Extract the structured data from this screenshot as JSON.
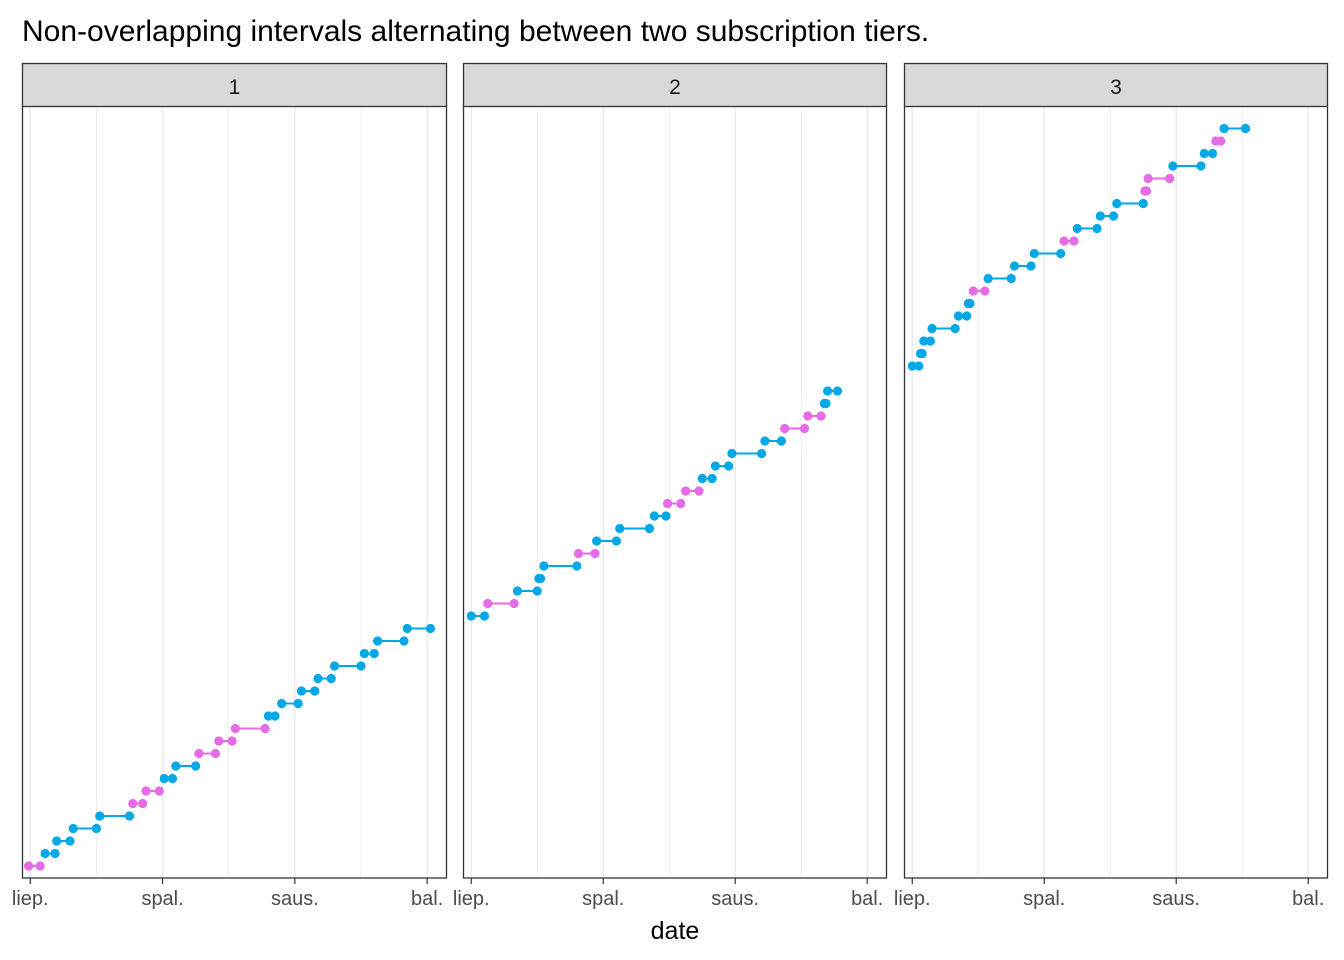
{
  "chart_data": {
    "type": "line",
    "title": "Non-overlapping intervals alternating between two subscription tiers.",
    "xlabel": "date",
    "ylabel": "",
    "x_unit": "months since liep.",
    "xlim": [
      -0.25,
      12.6
    ],
    "ylim": [
      0,
      60
    ],
    "x_ticks": [
      {
        "value": 0,
        "label": "liep."
      },
      {
        "value": 4,
        "label": "spal."
      },
      {
        "value": 8,
        "label": "saus."
      },
      {
        "value": 12,
        "label": "bal."
      }
    ],
    "x_minor_ticks": [
      2,
      6,
      10
    ],
    "grid": true,
    "tier_colors": {
      "A": "#00A9E6",
      "B": "#E66BE6"
    },
    "panels": [
      {
        "label": "1",
        "segments": [
          {
            "y": 0,
            "x0": -0.05,
            "x1": 0.3,
            "tier": "B"
          },
          {
            "y": 1,
            "x0": 0.45,
            "x1": 0.75,
            "tier": "A"
          },
          {
            "y": 2,
            "x0": 0.8,
            "x1": 1.2,
            "tier": "A"
          },
          {
            "y": 3,
            "x0": 1.3,
            "x1": 2.0,
            "tier": "A"
          },
          {
            "y": 4,
            "x0": 2.1,
            "x1": 3.0,
            "tier": "A"
          },
          {
            "y": 5,
            "x0": 3.1,
            "x1": 3.4,
            "tier": "B"
          },
          {
            "y": 6,
            "x0": 3.5,
            "x1": 3.9,
            "tier": "B"
          },
          {
            "y": 7,
            "x0": 4.05,
            "x1": 4.3,
            "tier": "A"
          },
          {
            "y": 8,
            "x0": 4.4,
            "x1": 5.0,
            "tier": "A"
          },
          {
            "y": 9,
            "x0": 5.1,
            "x1": 5.6,
            "tier": "B"
          },
          {
            "y": 10,
            "x0": 5.7,
            "x1": 6.1,
            "tier": "B"
          },
          {
            "y": 11,
            "x0": 6.2,
            "x1": 7.1,
            "tier": "B"
          },
          {
            "y": 12,
            "x0": 7.2,
            "x1": 7.4,
            "tier": "A"
          },
          {
            "y": 13,
            "x0": 7.6,
            "x1": 8.1,
            "tier": "A"
          },
          {
            "y": 14,
            "x0": 8.2,
            "x1": 8.6,
            "tier": "A"
          },
          {
            "y": 15,
            "x0": 8.7,
            "x1": 9.1,
            "tier": "A"
          },
          {
            "y": 16,
            "x0": 9.2,
            "x1": 10.0,
            "tier": "A"
          },
          {
            "y": 17,
            "x0": 10.1,
            "x1": 10.4,
            "tier": "A"
          },
          {
            "y": 18,
            "x0": 10.5,
            "x1": 11.3,
            "tier": "A"
          },
          {
            "y": 19,
            "x0": 11.4,
            "x1": 12.1,
            "tier": "A"
          }
        ]
      },
      {
        "label": "2",
        "segments": [
          {
            "y": 20,
            "x0": 0.0,
            "x1": 0.4,
            "tier": "A"
          },
          {
            "y": 21,
            "x0": 0.5,
            "x1": 1.3,
            "tier": "B"
          },
          {
            "y": 22,
            "x0": 1.4,
            "x1": 2.0,
            "tier": "A"
          },
          {
            "y": 23,
            "x0": 2.05,
            "x1": 2.1,
            "tier": "A"
          },
          {
            "y": 24,
            "x0": 2.2,
            "x1": 3.2,
            "tier": "A"
          },
          {
            "y": 25,
            "x0": 3.25,
            "x1": 3.75,
            "tier": "B"
          },
          {
            "y": 26,
            "x0": 3.8,
            "x1": 4.4,
            "tier": "A"
          },
          {
            "y": 27,
            "x0": 4.5,
            "x1": 5.4,
            "tier": "A"
          },
          {
            "y": 28,
            "x0": 5.55,
            "x1": 5.9,
            "tier": "A"
          },
          {
            "y": 29,
            "x0": 5.95,
            "x1": 6.35,
            "tier": "B"
          },
          {
            "y": 30,
            "x0": 6.5,
            "x1": 6.9,
            "tier": "B"
          },
          {
            "y": 31,
            "x0": 7.0,
            "x1": 7.3,
            "tier": "A"
          },
          {
            "y": 32,
            "x0": 7.4,
            "x1": 7.8,
            "tier": "A"
          },
          {
            "y": 33,
            "x0": 7.9,
            "x1": 8.8,
            "tier": "A"
          },
          {
            "y": 34,
            "x0": 8.9,
            "x1": 9.4,
            "tier": "A"
          },
          {
            "y": 35,
            "x0": 9.5,
            "x1": 10.1,
            "tier": "B"
          },
          {
            "y": 36,
            "x0": 10.2,
            "x1": 10.6,
            "tier": "B"
          },
          {
            "y": 37,
            "x0": 10.7,
            "x1": 10.75,
            "tier": "A"
          },
          {
            "y": 38,
            "x0": 10.8,
            "x1": 11.1,
            "tier": "A"
          }
        ]
      },
      {
        "label": "3",
        "segments": [
          {
            "y": 40,
            "x0": 0.0,
            "x1": 0.2,
            "tier": "A"
          },
          {
            "y": 41,
            "x0": 0.25,
            "x1": 0.3,
            "tier": "A"
          },
          {
            "y": 42,
            "x0": 0.35,
            "x1": 0.55,
            "tier": "A"
          },
          {
            "y": 43,
            "x0": 0.6,
            "x1": 1.3,
            "tier": "A"
          },
          {
            "y": 44,
            "x0": 1.4,
            "x1": 1.65,
            "tier": "A"
          },
          {
            "y": 45,
            "x0": 1.7,
            "x1": 1.75,
            "tier": "A"
          },
          {
            "y": 46,
            "x0": 1.85,
            "x1": 2.2,
            "tier": "B"
          },
          {
            "y": 47,
            "x0": 2.3,
            "x1": 3.0,
            "tier": "A"
          },
          {
            "y": 48,
            "x0": 3.1,
            "x1": 3.6,
            "tier": "A"
          },
          {
            "y": 49,
            "x0": 3.7,
            "x1": 4.5,
            "tier": "A"
          },
          {
            "y": 50,
            "x0": 4.6,
            "x1": 4.9,
            "tier": "B"
          },
          {
            "y": 51,
            "x0": 5.0,
            "x1": 5.6,
            "tier": "A"
          },
          {
            "y": 52,
            "x0": 5.7,
            "x1": 6.1,
            "tier": "A"
          },
          {
            "y": 53,
            "x0": 6.2,
            "x1": 7.0,
            "tier": "A"
          },
          {
            "y": 54,
            "x0": 7.05,
            "x1": 7.1,
            "tier": "B"
          },
          {
            "y": 55,
            "x0": 7.15,
            "x1": 7.8,
            "tier": "B"
          },
          {
            "y": 56,
            "x0": 7.9,
            "x1": 8.75,
            "tier": "A"
          },
          {
            "y": 57,
            "x0": 8.85,
            "x1": 9.1,
            "tier": "A"
          },
          {
            "y": 58,
            "x0": 9.2,
            "x1": 9.35,
            "tier": "B"
          },
          {
            "y": 59,
            "x0": 9.45,
            "x1": 10.1,
            "tier": "A"
          }
        ]
      }
    ]
  }
}
